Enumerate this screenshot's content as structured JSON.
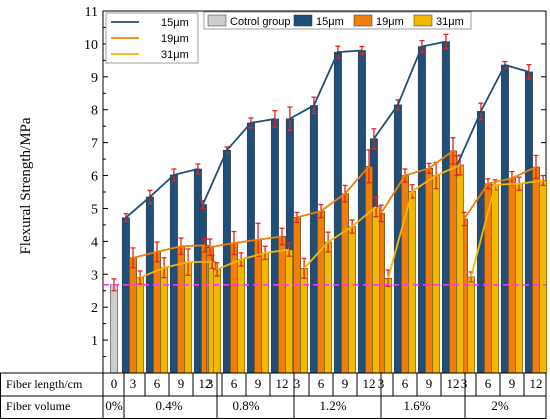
{
  "chart_data": {
    "type": "bar",
    "ylabel": "Flexural Strength/MPa",
    "ylim": [
      0,
      11
    ],
    "yticks": [
      1,
      2,
      3,
      4,
      5,
      6,
      7,
      8,
      9,
      10,
      11
    ],
    "table_rows": [
      {
        "label": "Fiber length/cm",
        "cells": [
          "0",
          "3",
          "6",
          "9",
          "12",
          "3",
          "6",
          "9",
          "12",
          "3",
          "6",
          "9",
          "12",
          "3",
          "6",
          "9",
          "12",
          "3",
          "6",
          "9",
          "12"
        ]
      },
      {
        "label": "Fiber volume",
        "cells": [
          "0%",
          "0.4%",
          "0.8%",
          "1.2%",
          "1.6%",
          "2%"
        ]
      }
    ],
    "reference_line": {
      "value": 2.68,
      "style": "dashed",
      "color": "#ff33ff"
    },
    "control": {
      "name": "Cotrol group",
      "value": 2.68,
      "err": 0.18,
      "color": "#cccccc"
    },
    "groups": [
      {
        "volume": "0.4%",
        "lengths": [
          "3",
          "6",
          "9",
          "12"
        ]
      },
      {
        "volume": "0.8%",
        "lengths": [
          "3",
          "6",
          "9",
          "12"
        ]
      },
      {
        "volume": "1.2%",
        "lengths": [
          "3",
          "6",
          "9",
          "12"
        ]
      },
      {
        "volume": "1.6%",
        "lengths": [
          "3",
          "6",
          "9",
          "12"
        ]
      },
      {
        "volume": "2%",
        "lengths": [
          "3",
          "6",
          "9",
          "12"
        ]
      }
    ],
    "series": [
      {
        "name": "15μm",
        "color": "#1f4e79",
        "values": [
          [
            4.72,
            5.35,
            6.02,
            6.2
          ],
          [
            5.12,
            6.77,
            7.6,
            7.72
          ],
          [
            7.73,
            8.13,
            9.75,
            9.8
          ],
          [
            7.12,
            8.15,
            9.92,
            10.07
          ],
          [
            6.3,
            7.95,
            9.36,
            9.15
          ]
        ],
        "errors": [
          [
            0.12,
            0.2,
            0.18,
            0.15
          ],
          [
            0.12,
            0.1,
            0.15,
            0.25
          ],
          [
            0.35,
            0.25,
            0.18,
            0.12
          ],
          [
            0.3,
            0.15,
            0.18,
            0.22
          ],
          [
            0.3,
            0.25,
            0.1,
            0.22
          ]
        ]
      },
      {
        "name": "19μm",
        "color": "#f07f09",
        "values": [
          [
            3.5,
            3.68,
            3.85,
            3.88
          ],
          [
            3.82,
            3.95,
            4.05,
            4.15
          ],
          [
            4.73,
            4.92,
            5.45,
            6.28
          ],
          [
            4.85,
            6.0,
            6.22,
            6.75
          ],
          [
            4.68,
            5.75,
            5.92,
            6.26
          ]
        ],
        "errors": [
          [
            0.3,
            0.3,
            0.25,
            0.2
          ],
          [
            0.25,
            0.35,
            0.5,
            0.25
          ],
          [
            0.15,
            0.2,
            0.25,
            0.5
          ],
          [
            0.25,
            0.2,
            0.15,
            0.4
          ],
          [
            0.2,
            0.15,
            0.2,
            0.35
          ]
        ]
      },
      {
        "name": "31μm",
        "color": "#f5b800",
        "values": [
          [
            2.9,
            3.2,
            3.37,
            3.38
          ],
          [
            3.15,
            3.45,
            3.65,
            3.75
          ],
          [
            3.18,
            3.98,
            4.45,
            5.05
          ],
          [
            2.88,
            5.52,
            6.0,
            6.32
          ],
          [
            2.92,
            5.72,
            5.75,
            5.85
          ]
        ],
        "errors": [
          [
            0.2,
            0.3,
            0.4,
            0.2
          ],
          [
            0.2,
            0.2,
            0.2,
            0.2
          ],
          [
            0.3,
            0.3,
            0.2,
            0.3
          ],
          [
            0.25,
            0.2,
            0.4,
            0.3
          ],
          [
            0.15,
            0.15,
            0.2,
            0.15
          ]
        ]
      }
    ]
  }
}
